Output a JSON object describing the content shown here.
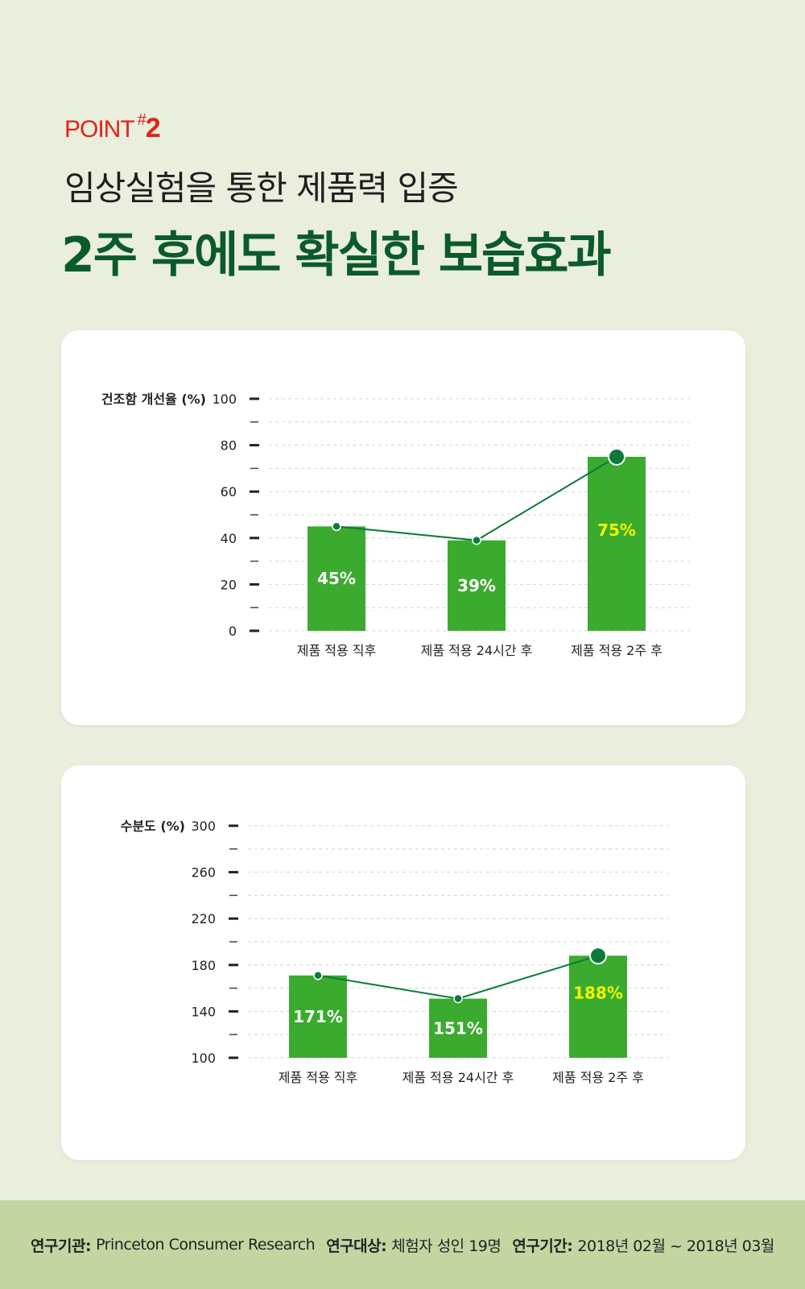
{
  "header": {
    "point_label": "POINT",
    "point_hash": "#",
    "point_num": "2",
    "subtitle": "임상실험을 통한 제품력 입증",
    "headline": "2주 후에도 확실한 보습효과"
  },
  "colors": {
    "bar": "#3aab2e",
    "line": "#0b7a3a",
    "highlight_label": "#f5f500",
    "accent_red": "#e2231a",
    "headline_green": "#0b5a2c"
  },
  "chart_data": [
    {
      "type": "bar",
      "ylabel": "건조함 개선율 (%)",
      "categories": [
        "제품 적용 직후",
        "제품 적용 24시간 후",
        "제품 적용 2주 후"
      ],
      "values": [
        45,
        39,
        75
      ],
      "value_labels": [
        "45%",
        "39%",
        "75%"
      ],
      "line_overlay": true,
      "ylim": [
        0,
        100
      ],
      "yticks": [
        0,
        20,
        40,
        60,
        80,
        100
      ],
      "grid": "dashed"
    },
    {
      "type": "bar",
      "ylabel": "수분도 (%)",
      "categories": [
        "제품 적용 직후",
        "제품 적용 24시간 후",
        "제품 적용 2주 후"
      ],
      "values": [
        171,
        151,
        188
      ],
      "value_labels": [
        "171%",
        "151%",
        "188%"
      ],
      "line_overlay": true,
      "ylim": [
        100,
        300
      ],
      "yticks": [
        100,
        140,
        180,
        220,
        260,
        300
      ],
      "grid": "dashed"
    }
  ],
  "footer": {
    "org_key": "연구기관:",
    "org_val": "Princeton Consumer Research",
    "subj_key": "연구대상:",
    "subj_val": "체험자 성인 19명",
    "period_key": "연구기간:",
    "period_val": "2018년 02월 ~ 2018년 03월"
  }
}
